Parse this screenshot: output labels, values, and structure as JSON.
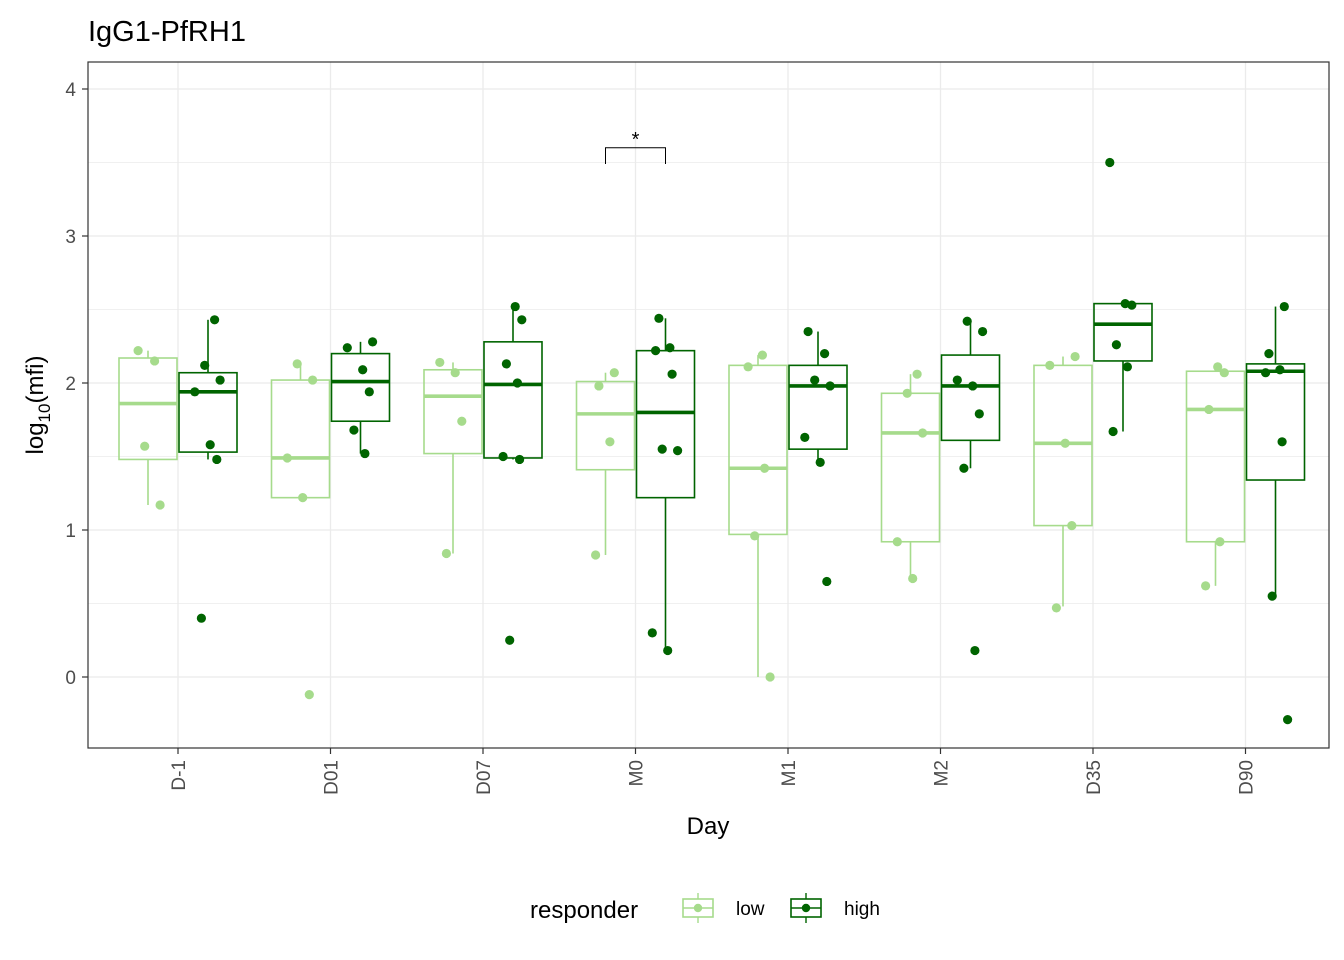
{
  "chart_data": {
    "type": "box",
    "title": "IgG1-PfRH1",
    "xlabel": "Day",
    "ylabel": "log10(mfi)",
    "ylabel_base": "log",
    "ylabel_sub": "10",
    "ylabel_rest": "(mfi)",
    "ylim": [
      -0.48,
      4.0
    ],
    "yticks": [
      0,
      1,
      2,
      3,
      4
    ],
    "grid": true,
    "legend": {
      "title": "responder",
      "position": "bottom"
    },
    "categories": [
      "D-1",
      "D01",
      "D07",
      "M0",
      "M1",
      "M2",
      "D35",
      "D90"
    ],
    "significance": [
      {
        "category": "M0",
        "label": "*",
        "y": 3.6
      }
    ],
    "series": [
      {
        "name": "low",
        "color": "#a6db8c",
        "boxes": [
          {
            "q1": 1.48,
            "median": 1.86,
            "q3": 2.17,
            "whisker_low": 1.17,
            "whisker_high": 2.22,
            "points": [
              2.22,
              2.15,
              1.57,
              1.17
            ]
          },
          {
            "q1": 1.22,
            "median": 1.49,
            "q3": 2.02,
            "whisker_low": 1.22,
            "whisker_high": 2.13,
            "points": [
              2.13,
              2.02,
              1.49,
              1.22,
              -0.12
            ]
          },
          {
            "q1": 1.52,
            "median": 1.91,
            "q3": 2.09,
            "whisker_low": 0.84,
            "whisker_high": 2.14,
            "points": [
              2.14,
              2.07,
              1.74,
              0.84
            ]
          },
          {
            "q1": 1.41,
            "median": 1.79,
            "q3": 2.01,
            "whisker_low": 0.83,
            "whisker_high": 2.07,
            "points": [
              2.07,
              1.98,
              1.6,
              0.83
            ]
          },
          {
            "q1": 0.97,
            "median": 1.42,
            "q3": 2.12,
            "whisker_low": 0.0,
            "whisker_high": 2.19,
            "points": [
              2.19,
              2.11,
              1.42,
              0.96,
              0.0
            ]
          },
          {
            "q1": 0.92,
            "median": 1.66,
            "q3": 1.93,
            "whisker_low": 0.67,
            "whisker_high": 2.06,
            "points": [
              2.06,
              1.93,
              1.66,
              0.92,
              0.67
            ]
          },
          {
            "q1": 1.03,
            "median": 1.59,
            "q3": 2.12,
            "whisker_low": 0.48,
            "whisker_high": 2.18,
            "points": [
              2.18,
              2.12,
              1.59,
              1.03,
              0.47
            ]
          },
          {
            "q1": 0.92,
            "median": 1.82,
            "q3": 2.08,
            "whisker_low": 0.62,
            "whisker_high": 2.11,
            "points": [
              2.11,
              2.07,
              1.82,
              0.92,
              0.62
            ]
          }
        ]
      },
      {
        "name": "high",
        "color": "#006400",
        "boxes": [
          {
            "q1": 1.53,
            "median": 1.94,
            "q3": 2.07,
            "whisker_low": 1.48,
            "whisker_high": 2.43,
            "points": [
              2.43,
              2.12,
              2.02,
              1.94,
              1.58,
              1.48,
              0.4
            ]
          },
          {
            "q1": 1.74,
            "median": 2.01,
            "q3": 2.2,
            "whisker_low": 1.52,
            "whisker_high": 2.28,
            "points": [
              2.28,
              2.24,
              2.09,
              1.94,
              1.68,
              1.52
            ]
          },
          {
            "q1": 1.49,
            "median": 1.99,
            "q3": 2.28,
            "whisker_low": 1.48,
            "whisker_high": 2.52,
            "points": [
              2.52,
              2.43,
              2.13,
              2.0,
              1.5,
              1.48,
              0.25
            ]
          },
          {
            "q1": 1.22,
            "median": 1.8,
            "q3": 2.22,
            "whisker_low": 0.18,
            "whisker_high": 2.44,
            "points": [
              2.44,
              2.24,
              2.22,
              2.06,
              1.55,
              1.54,
              0.3,
              0.18
            ]
          },
          {
            "q1": 1.55,
            "median": 1.98,
            "q3": 2.12,
            "whisker_low": 1.46,
            "whisker_high": 2.35,
            "points": [
              2.35,
              2.2,
              2.02,
              1.98,
              1.63,
              1.46,
              0.65
            ]
          },
          {
            "q1": 1.61,
            "median": 1.98,
            "q3": 2.19,
            "whisker_low": 1.42,
            "whisker_high": 2.42,
            "points": [
              2.42,
              2.35,
              2.02,
              1.98,
              1.79,
              1.42,
              0.18
            ]
          },
          {
            "q1": 2.15,
            "median": 2.4,
            "q3": 2.54,
            "whisker_low": 1.67,
            "whisker_high": 2.54,
            "points": [
              3.5,
              2.54,
              2.53,
              2.26,
              2.11,
              1.67
            ]
          },
          {
            "q1": 1.34,
            "median": 2.08,
            "q3": 2.13,
            "whisker_low": 0.55,
            "whisker_high": 2.52,
            "points": [
              2.52,
              2.2,
              2.09,
              2.07,
              1.6,
              0.55,
              -0.29
            ]
          }
        ]
      }
    ]
  }
}
